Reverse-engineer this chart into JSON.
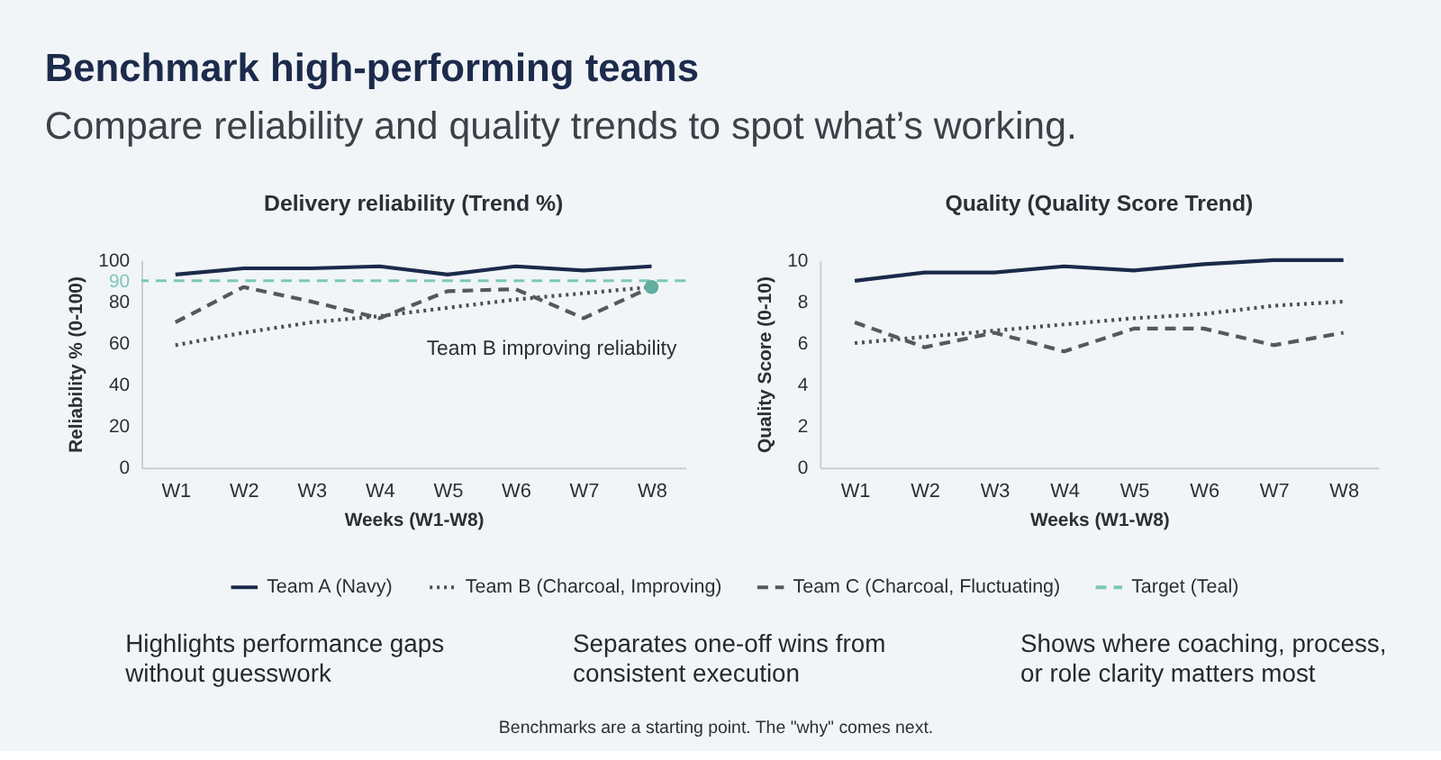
{
  "chart_data": [
    {
      "type": "other",
      "title": "Benchmark high-performing teams",
      "subtitle": "Compare reliability and quality trends to spot what’s working."
    },
    {
      "type": "line",
      "title": "Delivery reliability (Trend %)",
      "xlabel": "Weeks (W1-W8)",
      "ylabel": "Reliability % (0-100)",
      "categories": [
        "W1",
        "W2",
        "W3",
        "W4",
        "W5",
        "W6",
        "W7",
        "W8"
      ],
      "series": [
        {
          "name": "Team A (Navy)",
          "color": "#1b2a4a",
          "line_style": "solid",
          "values": [
            93,
            96,
            96,
            97,
            93,
            97,
            95,
            97
          ]
        },
        {
          "name": "Team B (Charcoal, Improving)",
          "color": "#4d4f53",
          "line_style": "dotted",
          "values": [
            59,
            65,
            70,
            73,
            77,
            81,
            84,
            87
          ]
        },
        {
          "name": "Team C (Charcoal, Fluctuating)",
          "color": "#56585c",
          "line_style": "dashed",
          "values": [
            70,
            87,
            80,
            72,
            85,
            86,
            72,
            87
          ]
        }
      ],
      "ylim": [
        0,
        100
      ],
      "yticks": [
        0,
        20,
        40,
        60,
        80,
        90,
        100
      ],
      "ref_lines": [
        {
          "axis": "y",
          "value": 90,
          "label": "Target (Teal)",
          "color": "#7cc7ba",
          "line_style": "dashed"
        }
      ],
      "annotations": [
        {
          "text": "Team B improving reliability",
          "x": "W8",
          "y": 87
        }
      ],
      "legend": "bottom"
    },
    {
      "type": "line",
      "title": "Quality (Quality Score Trend)",
      "xlabel": "Weeks (W1-W8)",
      "ylabel": "Quality Score (0-10)",
      "categories": [
        "W1",
        "W2",
        "W3",
        "W4",
        "W5",
        "W6",
        "W7",
        "W8"
      ],
      "series": [
        {
          "name": "Team A (Navy)",
          "color": "#1b2a4a",
          "line_style": "solid",
          "values": [
            9.0,
            9.4,
            9.4,
            9.7,
            9.5,
            9.8,
            10,
            10
          ]
        },
        {
          "name": "Team B (Charcoal, Improving)",
          "color": "#4d4f53",
          "line_style": "dotted",
          "values": [
            6.0,
            6.3,
            6.6,
            6.9,
            7.2,
            7.4,
            7.8,
            8.0
          ]
        },
        {
          "name": "Team C (Charcoal, Fluctuating)",
          "color": "#56585c",
          "line_style": "dashed",
          "values": [
            7.0,
            5.8,
            6.5,
            5.6,
            6.7,
            6.7,
            5.9,
            6.5
          ]
        }
      ],
      "ylim": [
        0,
        10
      ],
      "yticks": [
        0,
        2,
        4,
        6,
        8,
        10
      ],
      "legend": "bottom"
    },
    {
      "type": "other",
      "annotations": [
        "Highlights performance gaps without guesswork",
        "Separates one-off wins from consistent execution",
        "Shows where coaching, process, or role clarity matters most",
        "Benchmarks are a starting point. The \"why\" comes next."
      ]
    }
  ]
}
